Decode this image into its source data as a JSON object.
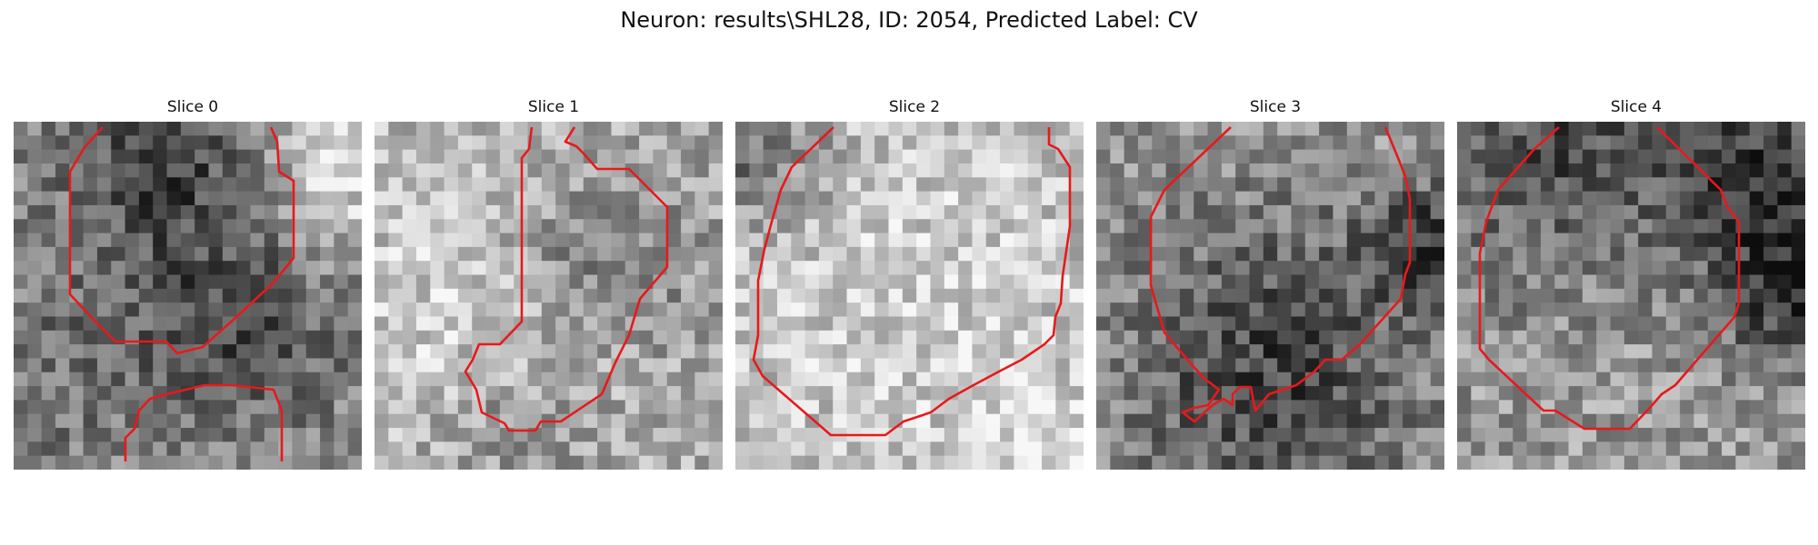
{
  "figure": {
    "title": "Neuron: results\\SHL28, ID: 2054, Predicted Label: CV"
  },
  "panels": [
    {
      "title": "Slice 0"
    },
    {
      "title": "Slice 1"
    },
    {
      "title": "Slice 2"
    },
    {
      "title": "Slice 3"
    },
    {
      "title": "Slice 4"
    }
  ],
  "colors": {
    "contour": "#e8191a",
    "background": "#ffffff",
    "image_cmap": "grayscale"
  }
}
